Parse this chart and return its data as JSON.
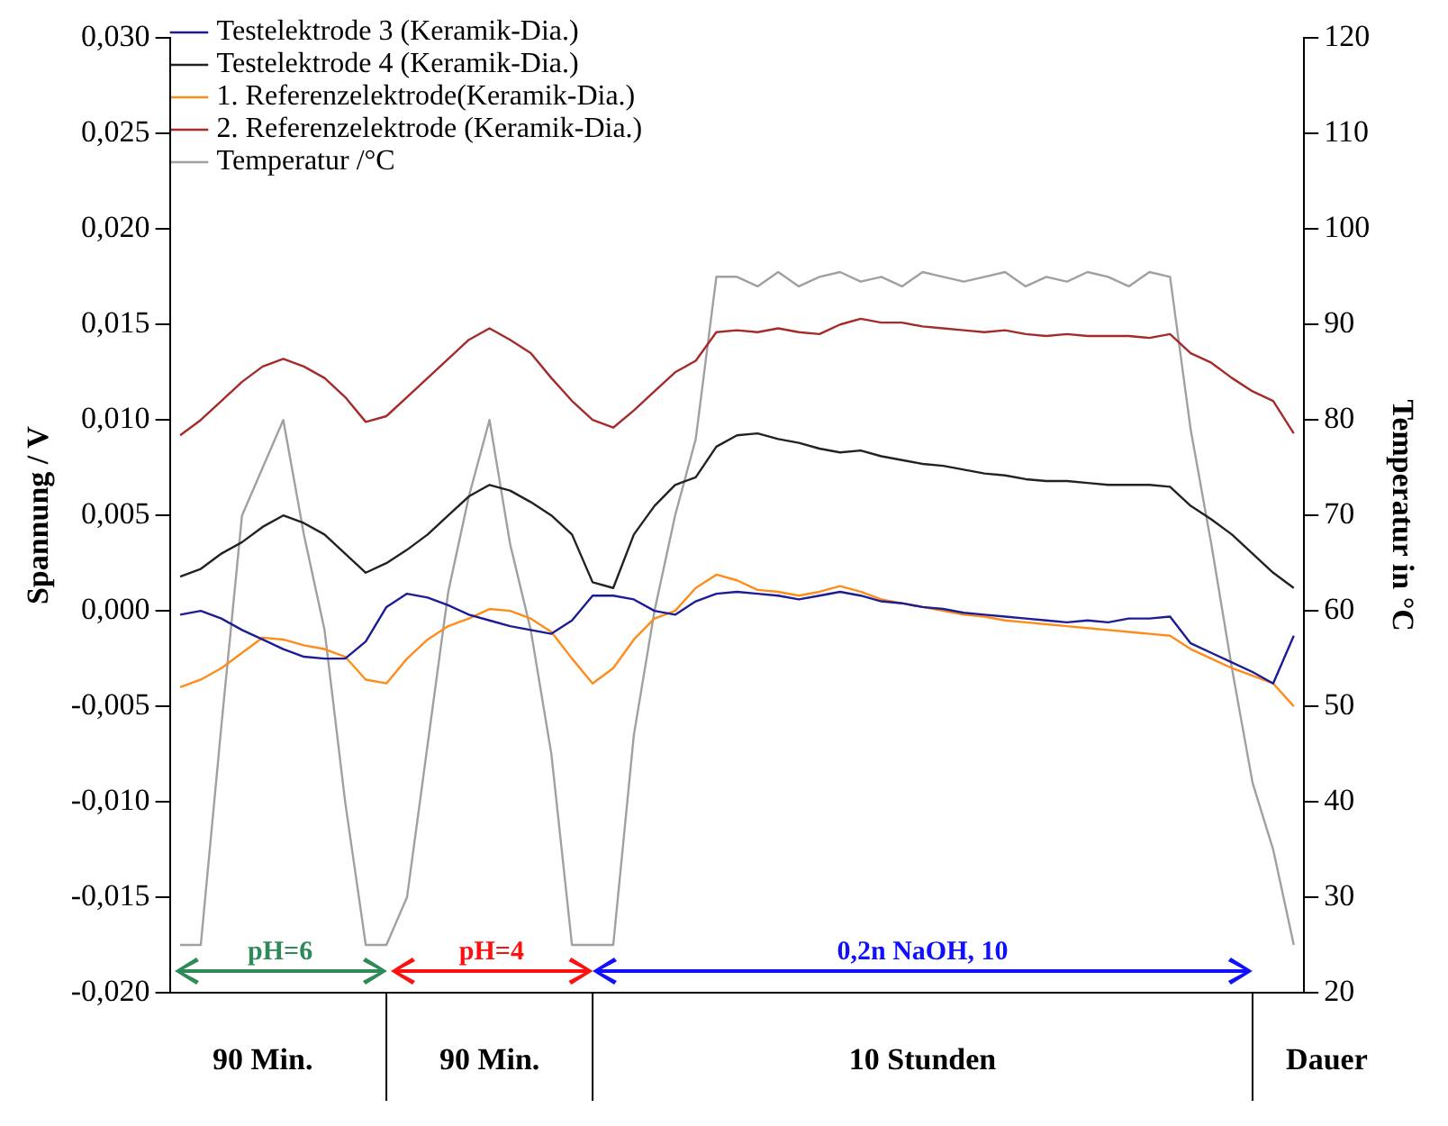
{
  "chart_data": {
    "type": "line",
    "categories": [
      null,
      null,
      null,
      null,
      null,
      null,
      null,
      null,
      null,
      null,
      null,
      null,
      null,
      null,
      null,
      null,
      null,
      null,
      null,
      null,
      null,
      null,
      null,
      null,
      null,
      null,
      null,
      null,
      null,
      null,
      null,
      null,
      null,
      null,
      null,
      null,
      null,
      null,
      null,
      null,
      null,
      null,
      null,
      null,
      null,
      null,
      null,
      null,
      null,
      null,
      null,
      null,
      null,
      null,
      null
    ],
    "series": [
      {
        "name": "Testelektrode 3 (Keramik-Dia.)",
        "color": "#1c1c96",
        "values": [
          -0.0002,
          0.0,
          -0.0004,
          -0.001,
          -0.0015,
          -0.002,
          -0.0024,
          -0.0025,
          -0.0025,
          -0.0016,
          0.0002,
          0.0009,
          0.0007,
          0.0003,
          -0.0002,
          -0.0005,
          -0.0008,
          -0.001,
          -0.0012,
          -0.0005,
          0.0008,
          0.0008,
          0.0006,
          0.0,
          -0.0002,
          0.0005,
          0.0009,
          0.001,
          0.0009,
          0.0008,
          0.0006,
          0.0008,
          0.001,
          0.0008,
          0.0005,
          0.0004,
          0.0002,
          0.0001,
          -0.0001,
          -0.0002,
          -0.0003,
          -0.0004,
          -0.0005,
          -0.0006,
          -0.0005,
          -0.0006,
          -0.0004,
          -0.0004,
          -0.0003,
          -0.0017,
          -0.0022,
          -0.0027,
          -0.0032,
          -0.0038,
          -0.0013
        ]
      },
      {
        "name": "Testelektrode 4 (Keramik-Dia.)",
        "color": "#222222",
        "values": [
          0.0018,
          0.0022,
          0.003,
          0.0036,
          0.0044,
          0.005,
          0.0046,
          0.004,
          0.003,
          0.002,
          0.0025,
          0.0032,
          0.004,
          0.005,
          0.006,
          0.0066,
          0.0063,
          0.0057,
          0.005,
          0.004,
          0.0015,
          0.0012,
          0.004,
          0.0055,
          0.0066,
          0.007,
          0.0086,
          0.0092,
          0.0093,
          0.009,
          0.0088,
          0.0085,
          0.0083,
          0.0084,
          0.0081,
          0.0079,
          0.0077,
          0.0076,
          0.0074,
          0.0072,
          0.0071,
          0.0069,
          0.0068,
          0.0068,
          0.0067,
          0.0066,
          0.0066,
          0.0066,
          0.0065,
          0.0055,
          0.0048,
          0.004,
          0.003,
          0.002,
          0.0012
        ]
      },
      {
        "name": "1. Referenzelektrode(Keramik-Dia.)",
        "color": "#ff8c1a",
        "values": [
          -0.004,
          -0.0036,
          -0.003,
          -0.0022,
          -0.0014,
          -0.0015,
          -0.0018,
          -0.002,
          -0.0024,
          -0.0036,
          -0.0038,
          -0.0025,
          -0.0015,
          -0.0008,
          -0.0004,
          0.0001,
          0.0,
          -0.0004,
          -0.0011,
          -0.0025,
          -0.0038,
          -0.003,
          -0.0015,
          -0.0004,
          0.0,
          0.0012,
          0.0019,
          0.0016,
          0.0011,
          0.001,
          0.0008,
          0.001,
          0.0013,
          0.001,
          0.0006,
          0.0004,
          0.0002,
          0.0,
          -0.0002,
          -0.0003,
          -0.0005,
          -0.0006,
          -0.0007,
          -0.0008,
          -0.0009,
          -0.001,
          -0.0011,
          -0.0012,
          -0.0013,
          -0.002,
          -0.0025,
          -0.003,
          -0.0034,
          -0.0038,
          -0.005
        ]
      },
      {
        "name": "2. Referenzelektrode (Keramik-Dia.)",
        "color": "#a52a2a",
        "values": [
          0.0092,
          0.01,
          0.011,
          0.012,
          0.0128,
          0.0132,
          0.0128,
          0.0122,
          0.0112,
          0.0099,
          0.0102,
          0.0112,
          0.0122,
          0.0132,
          0.0142,
          0.0148,
          0.0142,
          0.0135,
          0.0122,
          0.011,
          0.01,
          0.0096,
          0.0105,
          0.0115,
          0.0125,
          0.0131,
          0.0146,
          0.0147,
          0.0146,
          0.0148,
          0.0146,
          0.0145,
          0.015,
          0.0153,
          0.0151,
          0.0151,
          0.0149,
          0.0148,
          0.0147,
          0.0146,
          0.0147,
          0.0145,
          0.0144,
          0.0145,
          0.0144,
          0.0144,
          0.0144,
          0.0143,
          0.0145,
          0.0135,
          0.013,
          0.0122,
          0.0115,
          0.011,
          0.0093
        ]
      },
      {
        "name": "Temperatur /°C",
        "color": "#a0a0a0",
        "axis": "y2",
        "values": [
          25,
          25,
          48,
          70,
          75,
          80,
          68,
          58,
          40,
          25,
          25,
          30,
          46,
          62,
          72,
          80,
          67,
          58,
          45,
          25,
          25,
          25,
          47,
          60,
          70,
          78,
          95,
          95,
          94,
          95.5,
          94,
          95,
          95.5,
          94.5,
          95,
          94,
          95.5,
          95,
          94.5,
          95,
          95.5,
          94,
          95,
          94.5,
          95.5,
          95,
          94,
          95.5,
          95,
          79,
          67,
          54,
          42,
          35,
          25
        ]
      }
    ],
    "ylabel": "Spannung / V",
    "y2label": "Temperatur in °C",
    "xlabel": "Dauer",
    "ylim": [
      -0.02,
      0.03
    ],
    "yticks": [
      {
        "value": -0.02,
        "label": "-0,020"
      },
      {
        "value": -0.015,
        "label": "-0,015"
      },
      {
        "value": -0.01,
        "label": "-0,010"
      },
      {
        "value": -0.005,
        "label": "-0,005"
      },
      {
        "value": 0,
        "label": "0,000"
      },
      {
        "value": 0.005,
        "label": "0,005"
      },
      {
        "value": 0.01,
        "label": "0,010"
      },
      {
        "value": 0.015,
        "label": "0,015"
      },
      {
        "value": 0.02,
        "label": "0,020"
      },
      {
        "value": 0.025,
        "label": "0,025"
      },
      {
        "value": 0.03,
        "label": "0,030"
      }
    ],
    "y2lim": [
      20,
      120
    ],
    "y2ticks": [
      20,
      30,
      40,
      50,
      60,
      70,
      80,
      90,
      100,
      110,
      120
    ],
    "tick_labels": "y",
    "annotations": [
      "pH=6",
      "pH=4",
      "0,2n NaOH, 10",
      "90 Min.",
      "90 Min.",
      "10 Stunden"
    ],
    "legend": "top left",
    "grid": false,
    "marker": "none",
    "line_style": "solid"
  }
}
